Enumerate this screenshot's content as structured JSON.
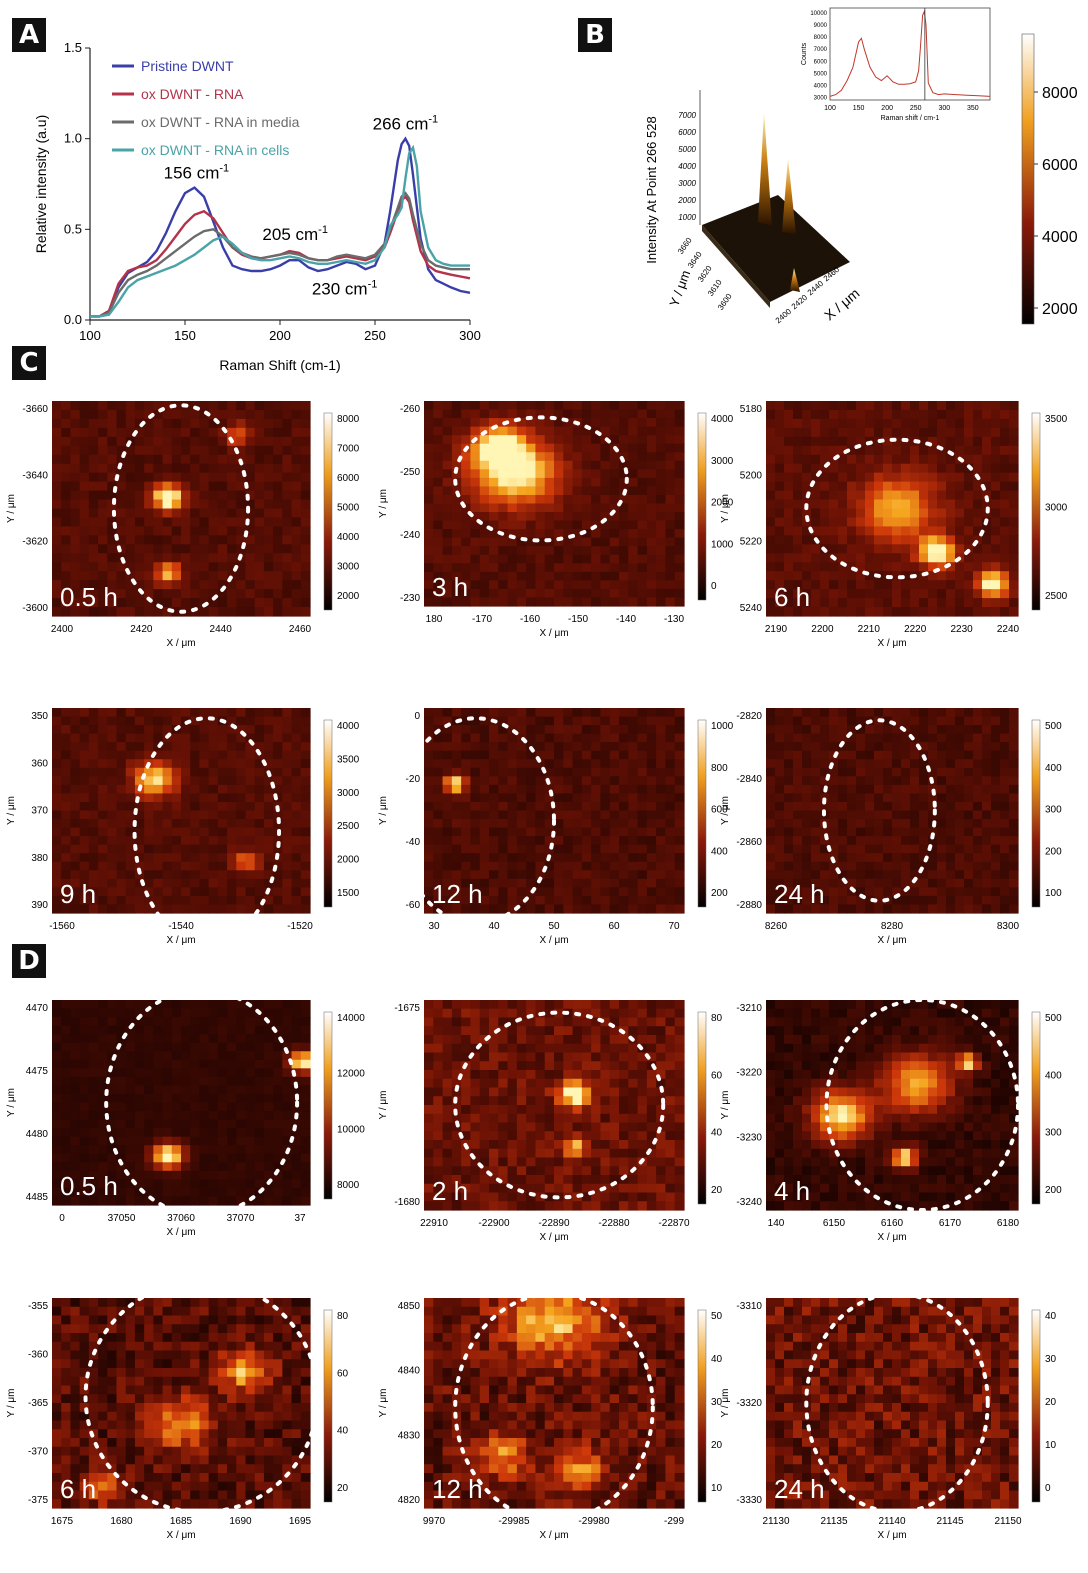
{
  "panels": {
    "a": "A",
    "b": "B",
    "c": "C",
    "d": "D"
  },
  "colors": {
    "pristine": "#3a3fa8",
    "ox_rna": "#b3334a",
    "media": "#6b6b6b",
    "cells": "#4aa3a8"
  },
  "chart_data": [
    {
      "type": "line",
      "xlabel": "Raman Shift (cm-1)",
      "ylabel": "Relative intensity (a.u)",
      "xlim": [
        100,
        300
      ],
      "ylim": [
        0,
        1.5
      ],
      "xticks": [
        100,
        150,
        200,
        250,
        300
      ],
      "yticks": [
        0.0,
        0.5,
        1.0,
        1.5
      ],
      "yticklabels": [
        "0.0",
        "0.5",
        "1.0",
        "1.5"
      ],
      "legend_position": "top-left",
      "annotations": [
        {
          "base": "156 cm",
          "sup": "-1",
          "x": 156,
          "y": 0.78
        },
        {
          "base": "205 cm",
          "sup": "-1",
          "x": 208,
          "y": 0.44
        },
        {
          "base": "230 cm",
          "sup": "-1",
          "x": 234,
          "y": 0.14
        },
        {
          "base": "266 cm",
          "sup": "-1",
          "x": 266,
          "y": 1.05
        }
      ],
      "series": [
        {
          "name": "Pristine DWNT",
          "color": "#3a3fa8",
          "x": [
            100,
            105,
            110,
            115,
            120,
            125,
            130,
            135,
            140,
            145,
            150,
            155,
            160,
            165,
            170,
            175,
            180,
            185,
            190,
            195,
            200,
            205,
            210,
            215,
            220,
            225,
            230,
            235,
            240,
            245,
            250,
            255,
            258,
            262,
            264,
            266,
            268,
            270,
            274,
            278,
            282,
            286,
            290,
            295,
            300
          ],
          "y": [
            0.02,
            0.02,
            0.05,
            0.18,
            0.26,
            0.29,
            0.32,
            0.38,
            0.48,
            0.6,
            0.7,
            0.73,
            0.68,
            0.54,
            0.4,
            0.3,
            0.28,
            0.27,
            0.27,
            0.28,
            0.3,
            0.33,
            0.33,
            0.29,
            0.27,
            0.28,
            0.3,
            0.32,
            0.31,
            0.28,
            0.3,
            0.42,
            0.6,
            0.88,
            0.97,
            1.0,
            0.96,
            0.8,
            0.45,
            0.28,
            0.22,
            0.2,
            0.18,
            0.16,
            0.15
          ]
        },
        {
          "name": "ox DWNT - RNA",
          "color": "#b3334a",
          "x": [
            100,
            105,
            110,
            115,
            120,
            125,
            130,
            135,
            140,
            145,
            150,
            155,
            160,
            165,
            170,
            175,
            180,
            185,
            190,
            195,
            200,
            205,
            210,
            215,
            220,
            225,
            230,
            235,
            240,
            245,
            250,
            255,
            258,
            262,
            264,
            266,
            268,
            270,
            274,
            278,
            282,
            286,
            290,
            295,
            300
          ],
          "y": [
            0.02,
            0.02,
            0.05,
            0.2,
            0.27,
            0.29,
            0.3,
            0.33,
            0.39,
            0.46,
            0.53,
            0.58,
            0.6,
            0.56,
            0.48,
            0.4,
            0.36,
            0.34,
            0.34,
            0.35,
            0.36,
            0.38,
            0.37,
            0.34,
            0.33,
            0.33,
            0.34,
            0.35,
            0.34,
            0.33,
            0.35,
            0.4,
            0.48,
            0.6,
            0.66,
            0.68,
            0.65,
            0.55,
            0.38,
            0.3,
            0.27,
            0.26,
            0.25,
            0.24,
            0.23
          ]
        },
        {
          "name": "ox DWNT - RNA in media",
          "color": "#6b6b6b",
          "x": [
            100,
            105,
            110,
            115,
            120,
            125,
            130,
            135,
            140,
            145,
            150,
            155,
            160,
            165,
            170,
            175,
            180,
            185,
            190,
            195,
            200,
            205,
            210,
            215,
            220,
            225,
            230,
            235,
            240,
            245,
            250,
            255,
            258,
            262,
            264,
            266,
            268,
            270,
            274,
            278,
            282,
            286,
            290,
            295,
            300
          ],
          "y": [
            0.02,
            0.02,
            0.04,
            0.15,
            0.22,
            0.25,
            0.27,
            0.3,
            0.34,
            0.38,
            0.42,
            0.46,
            0.49,
            0.5,
            0.46,
            0.4,
            0.37,
            0.35,
            0.34,
            0.35,
            0.36,
            0.37,
            0.36,
            0.34,
            0.33,
            0.33,
            0.35,
            0.36,
            0.35,
            0.34,
            0.36,
            0.42,
            0.5,
            0.62,
            0.68,
            0.7,
            0.67,
            0.58,
            0.42,
            0.33,
            0.3,
            0.29,
            0.28,
            0.28,
            0.28
          ]
        },
        {
          "name": "ox DWNT - RNA in cells",
          "color": "#4aa3a8",
          "x": [
            100,
            105,
            110,
            115,
            120,
            125,
            130,
            135,
            140,
            145,
            150,
            155,
            160,
            165,
            170,
            175,
            180,
            185,
            190,
            195,
            200,
            205,
            210,
            215,
            220,
            225,
            230,
            235,
            240,
            245,
            250,
            255,
            258,
            262,
            264,
            266,
            268,
            270,
            272,
            274,
            278,
            282,
            286,
            290,
            295,
            300
          ],
          "y": [
            0.02,
            0.02,
            0.03,
            0.1,
            0.18,
            0.22,
            0.24,
            0.26,
            0.28,
            0.3,
            0.33,
            0.36,
            0.4,
            0.44,
            0.46,
            0.42,
            0.37,
            0.34,
            0.33,
            0.33,
            0.34,
            0.35,
            0.34,
            0.32,
            0.31,
            0.31,
            0.32,
            0.33,
            0.32,
            0.31,
            0.33,
            0.4,
            0.52,
            0.58,
            0.62,
            0.78,
            0.92,
            0.95,
            0.85,
            0.6,
            0.4,
            0.33,
            0.31,
            0.3,
            0.3,
            0.3
          ]
        }
      ]
    },
    {
      "type": "surface",
      "zlabel": "Intensity At Point 266 528",
      "ylabel": "Y / μm",
      "xlabel": "X / μm",
      "zticks": [
        "7000",
        "6000",
        "5000",
        "4000",
        "3000",
        "2000",
        "1000"
      ],
      "yticks": [
        "3660",
        "3640",
        "3620",
        "3610",
        "3600"
      ],
      "xticks": [
        "2400",
        "2420",
        "2440",
        "2460"
      ],
      "colorbar_ticks": [
        "8000",
        "6000",
        "4000",
        "2000"
      ],
      "inset": {
        "type": "line",
        "ylabel": "Counts",
        "xlabel": "Raman shift / cm-1",
        "xticks": [
          "100",
          "150",
          "200",
          "250",
          "300",
          "350"
        ],
        "yticks": [
          "10000",
          "9000",
          "8000",
          "7000",
          "6000",
          "5000",
          "4000",
          "3000"
        ],
        "x": [
          100,
          110,
          120,
          130,
          140,
          150,
          155,
          160,
          170,
          180,
          190,
          200,
          210,
          220,
          230,
          240,
          250,
          255,
          258,
          262,
          265,
          268,
          272,
          280,
          290,
          300,
          320,
          340,
          360,
          380
        ],
        "y": [
          3100,
          3250,
          3600,
          4400,
          5500,
          7600,
          7900,
          7000,
          5500,
          4700,
          4400,
          4800,
          4300,
          4100,
          4100,
          4150,
          4300,
          5200,
          7000,
          9800,
          10100,
          9000,
          4200,
          3400,
          3250,
          3300,
          3250,
          3200,
          3150,
          3100
        ]
      }
    },
    {
      "type": "heatmap-grid",
      "panel": "C",
      "maps": [
        {
          "time": "0.5 h",
          "xlabel": "X / μm",
          "ylabel": "Y / μm",
          "xticks": [
            "2400",
            "2420",
            "2440",
            "2460"
          ],
          "yticks": [
            "-3660",
            "-3640",
            "-3620",
            "-3600"
          ],
          "colorbar": [
            "8000",
            "7000",
            "6000",
            "5000",
            "4000",
            "3000",
            "2000"
          ]
        },
        {
          "time": "3 h",
          "xlabel": "X / μm",
          "ylabel": "Y / μm",
          "xticks": [
            "180",
            "-170",
            "-160",
            "-150",
            "-140",
            "-130"
          ],
          "yticks": [
            "-260",
            "-250",
            "-240",
            "-230"
          ],
          "colorbar": [
            "4000",
            "3000",
            "2000",
            "1000",
            "0"
          ]
        },
        {
          "time": "6 h",
          "xlabel": "X / μm",
          "ylabel": "Y / μm",
          "xticks": [
            "2190",
            "2200",
            "2210",
            "2220",
            "2230",
            "2240"
          ],
          "yticks": [
            "5180",
            "5200",
            "5220",
            "5240"
          ],
          "colorbar": [
            "3500",
            "3000",
            "2500"
          ]
        },
        {
          "time": "9 h",
          "xlabel": "X / μm",
          "ylabel": "Y / μm",
          "xticks": [
            "-1560",
            "-1540",
            "-1520"
          ],
          "yticks": [
            "350",
            "360",
            "370",
            "380",
            "390"
          ],
          "colorbar": [
            "4000",
            "3500",
            "3000",
            "2500",
            "2000",
            "1500"
          ]
        },
        {
          "time": "12 h",
          "xlabel": "X / μm",
          "ylabel": "Y / μm",
          "xticks": [
            "30",
            "40",
            "50",
            "60",
            "70"
          ],
          "yticks": [
            "0",
            "-20",
            "-40",
            "-60"
          ],
          "colorbar": [
            "1000",
            "800",
            "600",
            "400",
            "200"
          ]
        },
        {
          "time": "24 h",
          "xlabel": "X / μm",
          "ylabel": "Y / μm",
          "xticks": [
            "8260",
            "8280",
            "8300"
          ],
          "yticks": [
            "-2820",
            "-2840",
            "-2860",
            "-2880"
          ],
          "colorbar": [
            "500",
            "400",
            "300",
            "200",
            "100"
          ]
        }
      ]
    },
    {
      "type": "heatmap-grid",
      "panel": "D",
      "maps": [
        {
          "time": "0.5 h",
          "xlabel": "X / μm",
          "ylabel": "Y / μm",
          "xticks": [
            "0",
            "37050",
            "37060",
            "37070",
            "37"
          ],
          "yticks": [
            "4470",
            "4475",
            "4480",
            "4485"
          ],
          "colorbar": [
            "14000",
            "12000",
            "10000",
            "8000"
          ]
        },
        {
          "time": "2 h",
          "xlabel": "X / μm",
          "ylabel": "Y / μm",
          "xticks": [
            "22910",
            "-22900",
            "-22890",
            "-22880",
            "-22870"
          ],
          "yticks": [
            "-1675",
            "-1680"
          ],
          "colorbar": [
            "80",
            "60",
            "40",
            "20"
          ]
        },
        {
          "time": "4 h",
          "xlabel": "X / μm",
          "ylabel": "Y / μm",
          "xticks": [
            "140",
            "6150",
            "6160",
            "6170",
            "6180"
          ],
          "yticks": [
            "-3210",
            "-3220",
            "-3230",
            "-3240"
          ],
          "colorbar": [
            "500",
            "400",
            "300",
            "200"
          ]
        },
        {
          "time": "6 h",
          "xlabel": "X / μm",
          "ylabel": "Y / μm",
          "xticks": [
            "1675",
            "1680",
            "1685",
            "1690",
            "1695"
          ],
          "yticks": [
            "-355",
            "-360",
            "-365",
            "-370",
            "-375"
          ],
          "colorbar": [
            "80",
            "60",
            "40",
            "20"
          ]
        },
        {
          "time": "12 h",
          "xlabel": "X / μm",
          "ylabel": "Y / μm",
          "xticks": [
            "9970",
            "-29985",
            "-29980",
            "-299"
          ],
          "yticks": [
            "4850",
            "4840",
            "4830",
            "4820"
          ],
          "colorbar": [
            "50",
            "40",
            "30",
            "20",
            "10"
          ]
        },
        {
          "time": "24 h",
          "xlabel": "X / μm",
          "ylabel": "Y / μm",
          "xticks": [
            "21130",
            "21135",
            "21140",
            "21145",
            "21150"
          ],
          "yticks": [
            "-3310",
            "-3320",
            "-3330"
          ],
          "colorbar": [
            "40",
            "30",
            "20",
            "10",
            "0"
          ]
        }
      ]
    }
  ]
}
